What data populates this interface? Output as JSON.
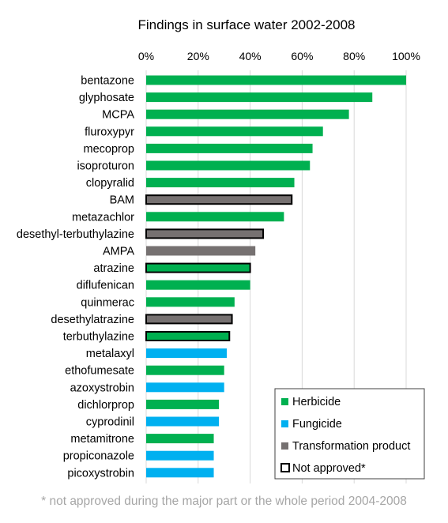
{
  "chart_data": {
    "type": "bar",
    "orientation": "horizontal",
    "title": "Findings in surface water 2002-2008",
    "xlim": [
      0,
      100
    ],
    "x_ticks": [
      "0%",
      "20%",
      "40%",
      "60%",
      "80%",
      "100%"
    ],
    "x_tick_values": [
      0,
      20,
      40,
      60,
      80,
      100
    ],
    "grid": true,
    "legend_position": "bottom-right",
    "categories": [
      "bentazone",
      "glyphosate",
      "MCPA",
      "fluroxypyr",
      "mecoprop",
      "isoproturon",
      "clopyralid",
      "BAM",
      "metazachlor",
      "desethyl-terbuthylazine",
      "AMPA",
      "atrazine",
      "diflufenican",
      "quinmerac",
      "desethylatrazine",
      "terbuthylazine",
      "metalaxyl",
      "ethofumesate",
      "azoxystrobin",
      "dichlorprop",
      "cyprodinil",
      "metamitrone",
      "propiconazole",
      "picoxystrobin"
    ],
    "values": [
      100,
      87,
      78,
      68,
      64,
      63,
      57,
      56,
      53,
      45,
      42,
      40,
      40,
      34,
      33,
      32,
      31,
      30,
      30,
      28,
      28,
      26,
      26,
      26
    ],
    "groups": [
      "Herbicide",
      "Herbicide",
      "Herbicide",
      "Herbicide",
      "Herbicide",
      "Herbicide",
      "Herbicide",
      "Transformation product",
      "Herbicide",
      "Transformation product",
      "Transformation product",
      "Herbicide",
      "Herbicide",
      "Herbicide",
      "Transformation product",
      "Herbicide",
      "Fungicide",
      "Herbicide",
      "Fungicide",
      "Herbicide",
      "Fungicide",
      "Herbicide",
      "Fungicide",
      "Fungicide"
    ],
    "not_approved": [
      false,
      false,
      false,
      false,
      false,
      false,
      false,
      true,
      false,
      true,
      false,
      true,
      false,
      false,
      true,
      true,
      false,
      false,
      false,
      false,
      false,
      false,
      false,
      false
    ],
    "legend": [
      {
        "label": "Herbicide",
        "color": "#00b050"
      },
      {
        "label": "Fungicide",
        "color": "#00b0f0"
      },
      {
        "label": "Transformation product",
        "color": "#767171"
      },
      {
        "label": "Not approved*",
        "color": "#ffffff",
        "outline": "#000000"
      }
    ],
    "colors": {
      "Herbicide": "#00b050",
      "Fungicide": "#00b0f0",
      "Transformation product": "#767171",
      "gridline": "#d9d9d9",
      "outline": "#000000"
    }
  },
  "footnote": "* not approved during the major part or the whole period 2004-2008"
}
